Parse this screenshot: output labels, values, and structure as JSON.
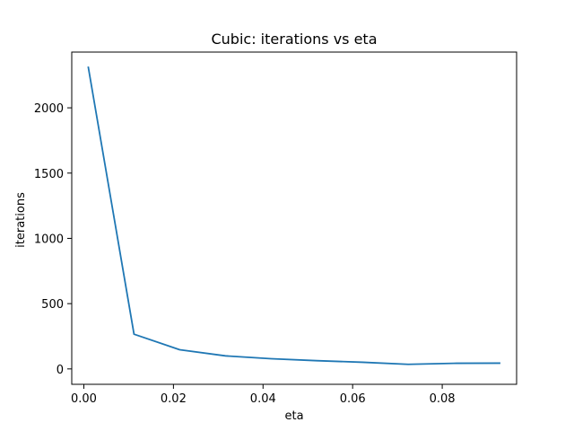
{
  "chart_data": {
    "type": "line",
    "title": "Cubic: iterations vs eta",
    "xlabel": "eta",
    "ylabel": "iterations",
    "xlim": [
      -0.0027,
      0.0966
    ],
    "ylim": [
      -118,
      2427
    ],
    "xticks": [
      0.0,
      0.02,
      0.04,
      0.06,
      0.08
    ],
    "xtick_labels": [
      "0.00",
      "0.02",
      "0.04",
      "0.06",
      "0.08"
    ],
    "yticks": [
      0,
      500,
      1000,
      1500,
      2000
    ],
    "ytick_labels": [
      "0",
      "500",
      "1000",
      "1500",
      "2000"
    ],
    "grid": false,
    "legend": "none",
    "series": [
      {
        "color": "#1f77b4",
        "x": [
          0.001,
          0.0112,
          0.0214,
          0.0316,
          0.0418,
          0.052,
          0.0622,
          0.0724,
          0.0826,
          0.0928
        ],
        "y": [
          2310,
          266,
          147,
          100,
          78,
          63,
          51,
          35,
          43,
          44
        ]
      }
    ]
  }
}
